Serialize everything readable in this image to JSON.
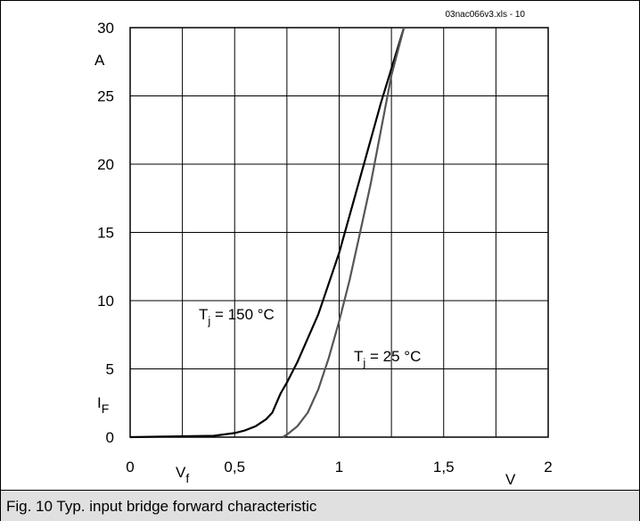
{
  "figure_caption": "Fig. 10 Typ. input bridge forward characteristic",
  "chart_data": {
    "type": "line",
    "source_label": "03nac066v3.xls - 10",
    "xlabel": "V",
    "ylabel": "A",
    "x_axis_symbol": "V",
    "x_axis_symbol_sub": "f",
    "y_axis_symbol": "I",
    "y_axis_symbol_sub": "F",
    "xlim": [
      0,
      2
    ],
    "ylim": [
      0,
      30
    ],
    "x_ticks": [
      0,
      0.5,
      1,
      1.5,
      2
    ],
    "x_tick_labels": [
      "0",
      "0,5",
      "1",
      "1,5",
      "2"
    ],
    "y_ticks": [
      0,
      5,
      10,
      15,
      20,
      25,
      30
    ],
    "y_tick_labels": [
      "0",
      "5",
      "10",
      "15",
      "20",
      "25",
      "30"
    ],
    "grid": true,
    "series": [
      {
        "name": "Tj = 150 °C",
        "label_main": "T",
        "label_sub": "j",
        "label_rest": " = 150 °C",
        "color": "#000000",
        "x": [
          0,
          0.2,
          0.4,
          0.5,
          0.55,
          0.6,
          0.65,
          0.68,
          0.7,
          0.72,
          0.75,
          0.8,
          0.9,
          1.0,
          1.1,
          1.2,
          1.31
        ],
        "y": [
          0,
          0.05,
          0.1,
          0.3,
          0.5,
          0.8,
          1.3,
          1.8,
          2.5,
          3.2,
          4.0,
          5.5,
          9.0,
          13.5,
          19.0,
          24.5,
          30
        ]
      },
      {
        "name": "Tj = 25 °C",
        "label_main": "T",
        "label_sub": "j",
        "label_rest": " = 25 °C",
        "color": "#555555",
        "x": [
          0.73,
          0.76,
          0.8,
          0.85,
          0.9,
          0.95,
          1.0,
          1.05,
          1.1,
          1.15,
          1.2,
          1.25,
          1.31
        ],
        "y": [
          0,
          0.3,
          0.8,
          1.8,
          3.5,
          5.8,
          8.5,
          11.5,
          15.0,
          18.5,
          22.5,
          26.5,
          30
        ]
      }
    ]
  }
}
